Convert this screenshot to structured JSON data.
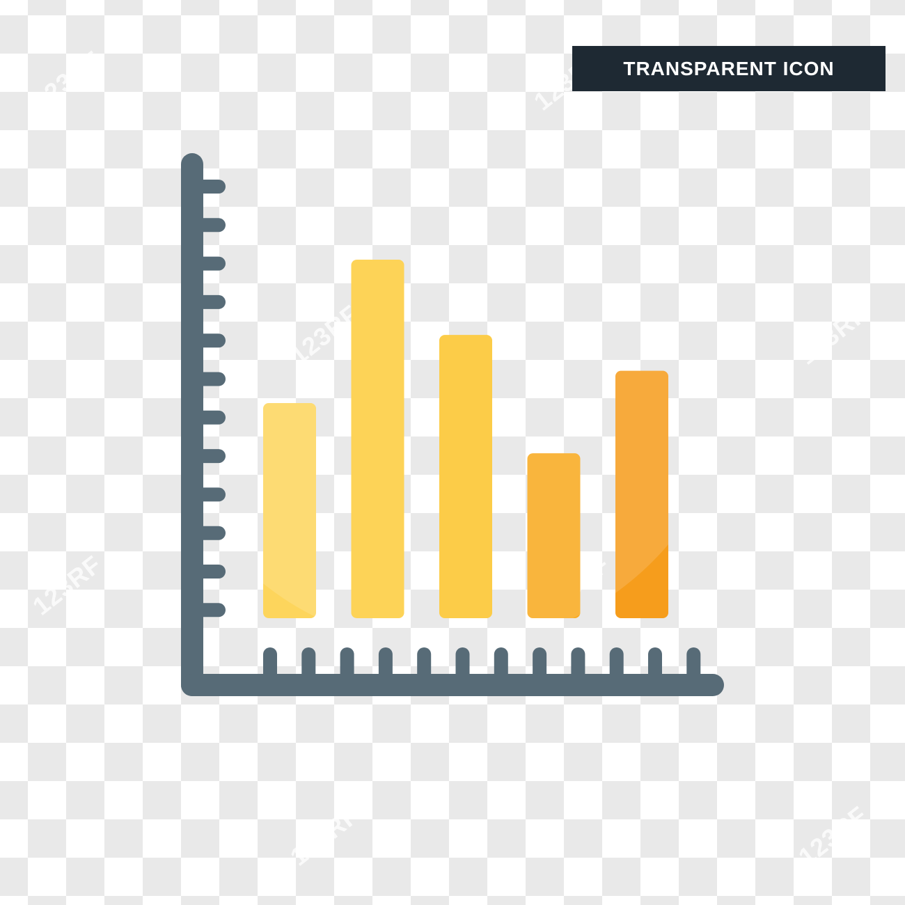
{
  "badge": {
    "label": "TRANSPARENT ICON",
    "bg_color": "#1e2933"
  },
  "watermark": {
    "text": "123RF"
  },
  "icon": {
    "name": "bar-chart-icon",
    "axis_color": "#576b77",
    "y_tick_count": 12,
    "x_tick_count": 12,
    "bar_colors": [
      "#fdd55c",
      "#fdcc3c",
      "#fcc42b",
      "#f9a91e",
      "#f69d1c"
    ],
    "bar_values": [
      0.6,
      1.0,
      0.79,
      0.46,
      0.69
    ]
  }
}
